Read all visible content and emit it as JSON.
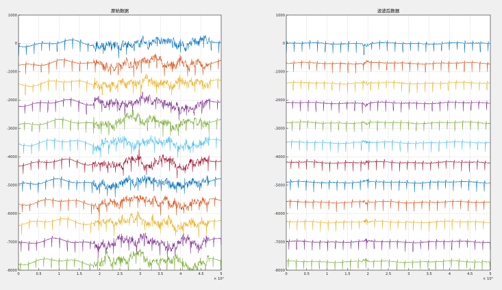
{
  "colors": {
    "figure_bg": "#f0f0f0",
    "axes_bg": "#ffffff",
    "grid": "#dfdfdf",
    "axis": "#262626",
    "series": [
      "#0072BD",
      "#D95319",
      "#EDB120",
      "#7E2F8E",
      "#77AC30",
      "#4DBEEE",
      "#A2142F",
      "#0072BD",
      "#D95319",
      "#EDB120",
      "#7E2F8E",
      "#77AC30"
    ]
  },
  "chart_data": [
    {
      "type": "line",
      "title": "原始数据",
      "xlabel": "",
      "ylabel": "",
      "xlim": [
        0,
        50000
      ],
      "ylim": [
        -8000,
        1000
      ],
      "x_tick_values": [
        0,
        5000,
        10000,
        15000,
        20000,
        25000,
        30000,
        35000,
        40000,
        45000,
        50000
      ],
      "x_tick_labels": [
        "0",
        "0.5",
        "1",
        "1.5",
        "2",
        "2.5",
        "3",
        "3.5",
        "4",
        "4.5",
        "5"
      ],
      "x_exponent": "× 10⁴",
      "y_tick_values": [
        1000,
        0,
        -1000,
        -2000,
        -3000,
        -4000,
        -5000,
        -6000,
        -7000,
        -8000
      ],
      "y_tick_labels": [
        "1000",
        "0",
        "-1000",
        "-2000",
        "-3000",
        "-4000",
        "-5000",
        "-6000",
        "-7000",
        "-8000"
      ],
      "grid": true,
      "series_offsets": [
        0,
        -700,
        -1400,
        -2100,
        -2800,
        -3500,
        -4200,
        -4900,
        -5600,
        -6300,
        -7000,
        -7700
      ],
      "spike_period": 1900,
      "spike_amplitude": 320,
      "baseline_wander": 80,
      "artifact_start": 18500,
      "artifact_end": 47000,
      "artifact_amplitude": 420
    },
    {
      "type": "line",
      "title": "滤波后数据",
      "xlabel": "",
      "ylabel": "",
      "xlim": [
        0,
        50000
      ],
      "ylim": [
        -8000,
        1000
      ],
      "x_tick_values": [
        0,
        5000,
        10000,
        15000,
        20000,
        25000,
        30000,
        35000,
        40000,
        45000,
        50000
      ],
      "x_tick_labels": [
        "0",
        "0.5",
        "1",
        "1.5",
        "2",
        "2.5",
        "3",
        "3.5",
        "4",
        "4.5",
        "5"
      ],
      "x_exponent": "× 10⁴",
      "y_tick_values": [
        1000,
        0,
        -1000,
        -2000,
        -3000,
        -4000,
        -5000,
        -6000,
        -7000,
        -8000
      ],
      "y_tick_labels": [
        "1000",
        "0",
        "-1000",
        "-2000",
        "-3000",
        "-4000",
        "-5000",
        "-6000",
        "-7000",
        "-8000"
      ],
      "grid": true,
      "series_offsets": [
        0,
        -700,
        -1400,
        -2100,
        -2800,
        -3500,
        -4200,
        -4900,
        -5600,
        -6300,
        -7000,
        -7700
      ],
      "spike_period": 1900,
      "spike_amplitude": 300,
      "baseline_wander": 20,
      "artifact_start": 18500,
      "artifact_end": 21500,
      "artifact_amplitude": 220
    }
  ]
}
